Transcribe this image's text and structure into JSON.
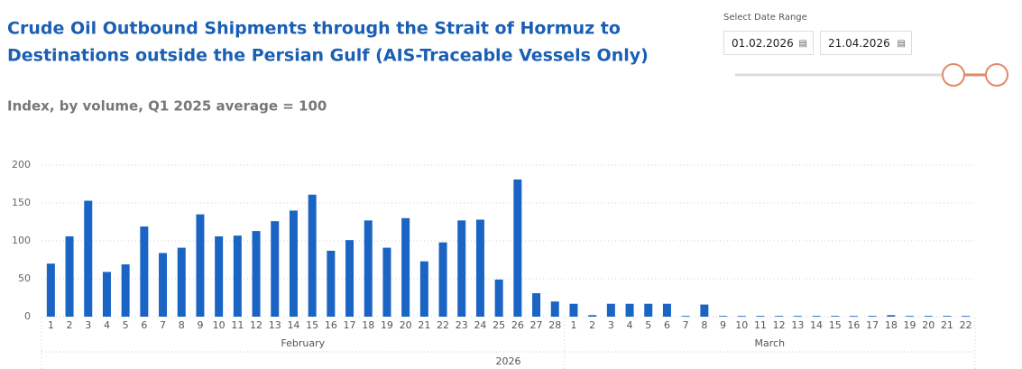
{
  "date_range": {
    "label": "Select Date Range",
    "start": "01.02.2026",
    "end": "21.04.2026"
  },
  "chart_data": {
    "type": "bar",
    "title": "Crude Oil Outbound Shipments through the Strait of Hormuz to",
    "title_line2": "Destinations outside the Persian Gulf (AIS-Traceable Vessels Only)",
    "subtitle": "Index, by volume, Q1 2025 average = 100",
    "categories": [
      "1",
      "2",
      "3",
      "4",
      "5",
      "6",
      "7",
      "8",
      "9",
      "10",
      "11",
      "12",
      "13",
      "14",
      "15",
      "16",
      "17",
      "18",
      "19",
      "20",
      "21",
      "22",
      "23",
      "24",
      "25",
      "26",
      "27",
      "28",
      "1",
      "2",
      "3",
      "4",
      "5",
      "6",
      "7",
      "8",
      "9",
      "10",
      "11",
      "12",
      "13",
      "14",
      "15",
      "16",
      "17",
      "18",
      "19",
      "20",
      "21",
      "22"
    ],
    "months": [
      "February",
      "March"
    ],
    "year": "2026",
    "values": [
      70,
      106,
      153,
      59,
      69,
      119,
      84,
      91,
      135,
      106,
      107,
      113,
      126,
      140,
      161,
      87,
      101,
      127,
      91,
      130,
      73,
      98,
      127,
      128,
      49,
      181,
      31,
      20,
      17,
      2,
      17,
      17,
      17,
      17,
      1,
      16,
      1,
      1,
      1,
      1,
      1,
      1,
      1,
      1,
      1,
      2,
      1,
      1,
      1,
      1
    ],
    "color": "#1a64c4",
    "ylim": [
      0,
      200
    ],
    "yticks": [
      0,
      50,
      100,
      150,
      200
    ],
    "grid": true
  }
}
